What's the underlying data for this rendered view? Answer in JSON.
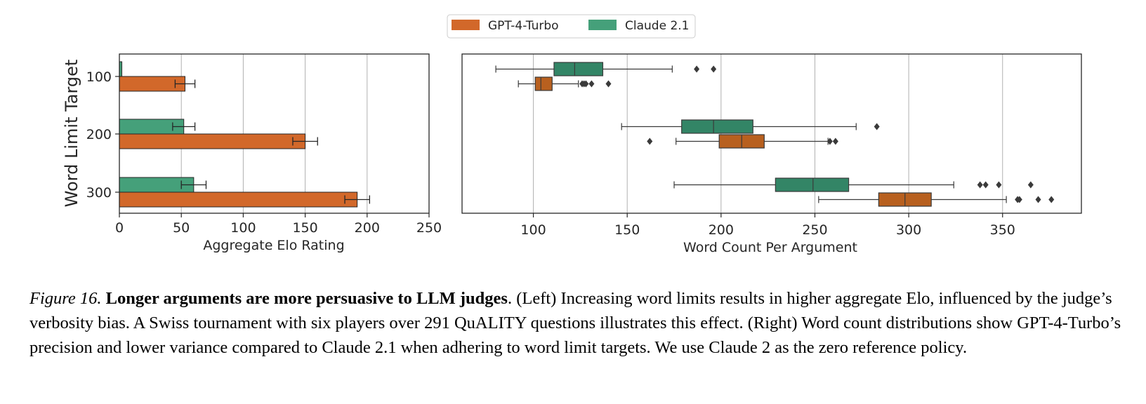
{
  "legend": [
    {
      "name": "GPT-4-Turbo",
      "color": "#d2682a"
    },
    {
      "name": "Claude 2.1",
      "color": "#45a07a"
    }
  ],
  "chart_data": [
    {
      "type": "bar",
      "orientation": "horizontal",
      "ylabel": "Word Limit Target",
      "xlabel": "Aggregate Elo Rating",
      "categories": [
        "100",
        "200",
        "300"
      ],
      "xlim": [
        0,
        250
      ],
      "xticks": [
        0,
        50,
        100,
        150,
        200,
        250
      ],
      "grid": "vertical",
      "series": [
        {
          "name": "Claude 2.1",
          "values": [
            2,
            52,
            60
          ],
          "errors": [
            0,
            9,
            10
          ]
        },
        {
          "name": "GPT-4-Turbo",
          "values": [
            53,
            150,
            192
          ],
          "errors": [
            8,
            10,
            10
          ]
        }
      ]
    },
    {
      "type": "box",
      "orientation": "horizontal",
      "xlabel": "Word Count Per Argument",
      "categories": [
        "100",
        "200",
        "300"
      ],
      "xlim": [
        62,
        392
      ],
      "xticks": [
        100,
        150,
        200,
        250,
        300,
        350
      ],
      "grid": "vertical",
      "series": [
        {
          "name": "Claude 2.1",
          "boxes": [
            {
              "whisker_low": 80,
              "q1": 111,
              "median": 122,
              "q3": 137,
              "whisker_high": 174,
              "outliers": [
                187,
                196
              ]
            },
            {
              "whisker_low": 147,
              "q1": 179,
              "median": 196,
              "q3": 217,
              "whisker_high": 272,
              "outliers": [
                283
              ]
            },
            {
              "whisker_low": 175,
              "q1": 229,
              "median": 249,
              "q3": 268,
              "whisker_high": 324,
              "outliers": [
                338,
                341,
                348,
                365
              ]
            }
          ]
        },
        {
          "name": "GPT-4-Turbo",
          "boxes": [
            {
              "whisker_low": 92,
              "q1": 101,
              "median": 104,
              "q3": 110,
              "whisker_high": 124,
              "outliers": [
                126,
                127,
                128,
                131,
                140
              ]
            },
            {
              "whisker_low": 176,
              "q1": 199,
              "median": 211,
              "q3": 223,
              "whisker_high": 257,
              "outliers": [
                162,
                258,
                261
              ]
            },
            {
              "whisker_low": 252,
              "q1": 284,
              "median": 298,
              "q3": 312,
              "whisker_high": 352,
              "outliers": [
                358,
                359,
                369,
                376
              ]
            }
          ]
        }
      ]
    }
  ],
  "caption": {
    "figure_label": "Figure 16.",
    "title": "Longer arguments are more persuasive to LLM judges",
    "body": ". (Left) Increasing word limits results in higher aggregate Elo, influenced by the judge’s verbosity bias. A Swiss tournament with six players over 291 QuALITY questions illustrates this effect. (Right) Word count distributions show GPT-4-Turbo’s precision and lower variance compared to Claude 2.1 when adhering to word limit targets. We use Claude 2 as the zero reference policy."
  }
}
